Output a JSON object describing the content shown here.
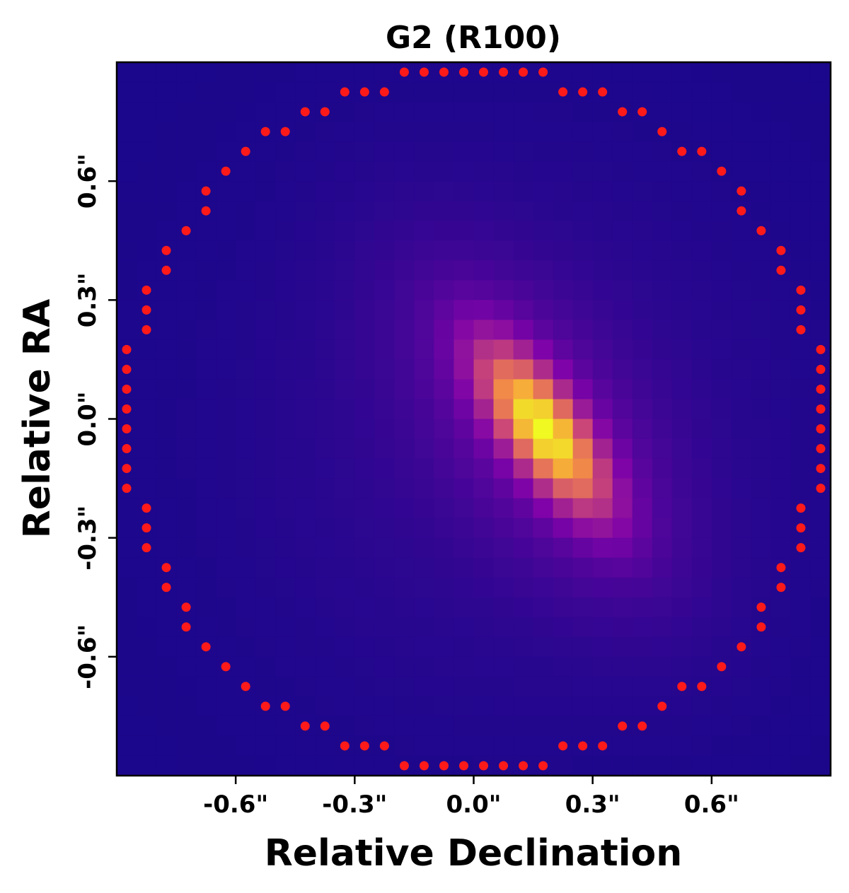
{
  "chart_data": {
    "type": "heatmap",
    "title": "G2 (R100)",
    "xlabel": "Relative Declination",
    "ylabel": "Relative RA",
    "xlim": [
      -0.9,
      0.9
    ],
    "ylim": [
      -0.9,
      0.9
    ],
    "x_ticks": [
      {
        "value": -0.6,
        "label": "-0.6\""
      },
      {
        "value": -0.3,
        "label": "-0.3\""
      },
      {
        "value": 0.0,
        "label": "0.0\""
      },
      {
        "value": 0.3,
        "label": "0.3\""
      },
      {
        "value": 0.6,
        "label": "0.6\""
      }
    ],
    "y_ticks": [
      {
        "value": 0.6,
        "label": "0.6\""
      },
      {
        "value": 0.3,
        "label": "0.3\""
      },
      {
        "value": 0.0,
        "label": "0.0\""
      },
      {
        "value": -0.3,
        "label": "-0.3\""
      },
      {
        "value": -0.6,
        "label": "-0.6\""
      }
    ],
    "colormap": "plasma",
    "pixel_size_arcsec": 0.05,
    "emission_peak": {
      "x": 0.175,
      "y": -0.025,
      "relative_intensity": 1.0
    },
    "aperture": {
      "shape": "circle",
      "center": [
        0.0,
        0.0
      ],
      "radius": 0.875,
      "marker_color": "#ff1a1a",
      "marker_spacing": 0.05
    },
    "grid": false
  }
}
